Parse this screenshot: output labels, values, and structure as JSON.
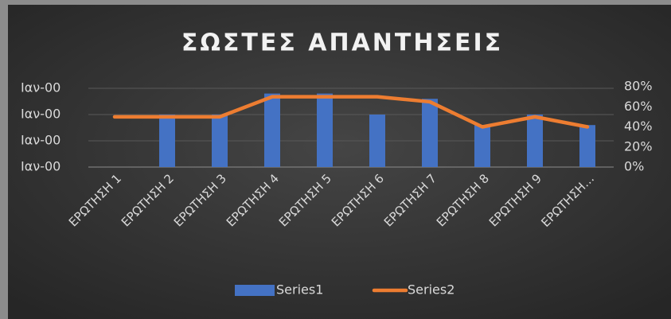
{
  "chart_data": {
    "type": "bar+line",
    "title": "ΣΩΣΤΕΣ ΑΠΑΝΤΗΣΕΙΣ",
    "categories": [
      "ΕΡΩΤΗΣΗ 1",
      "ΕΡΩΤΗΣΗ 2",
      "ΕΡΩΤΗΣΗ 3",
      "ΕΡΩΤΗΣΗ 4",
      "ΕΡΩΤΗΣΗ 5",
      "ΕΡΩΤΗΣΗ 6",
      "ΕΡΩΤΗΣΗ 7",
      "ΕΡΩΤΗΣΗ 8",
      "ΕΡΩΤΗΣΗ 9",
      "ΕΡΩΤΗΣΗ…"
    ],
    "series": [
      {
        "name": "Series1",
        "type": "bar",
        "color": "#4472c4",
        "values": [
          0,
          1,
          1,
          1.4,
          1.4,
          1,
          1.3,
          0.8,
          1,
          0.8
        ]
      },
      {
        "name": "Series2",
        "type": "line",
        "axis": "y2",
        "color": "#ed7d31",
        "values": [
          50,
          50,
          50,
          70,
          70,
          70,
          65,
          40,
          50,
          40
        ]
      }
    ],
    "ylim": [
      0,
      1.5
    ],
    "yticks": [
      {
        "value": 0,
        "label": "Ιαν-00"
      },
      {
        "value": 0.5,
        "label": "Ιαν-00"
      },
      {
        "value": 1,
        "label": "Ιαν-00"
      },
      {
        "value": 1.5,
        "label": "Ιαν-00"
      }
    ],
    "y2lim": [
      0,
      80
    ],
    "y2ticks": [
      {
        "value": 0,
        "label": "0%"
      },
      {
        "value": 20,
        "label": "20%"
      },
      {
        "value": 40,
        "label": "40%"
      },
      {
        "value": 60,
        "label": "60%"
      },
      {
        "value": 80,
        "label": "80%"
      }
    ],
    "grid": true,
    "legend": "bottom"
  }
}
